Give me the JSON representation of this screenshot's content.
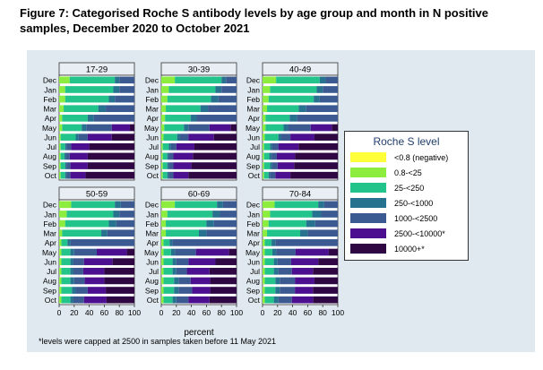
{
  "figure": {
    "title": "Figure 7: Categorised Roche S antibody levels by age group and month in N positive samples, December 2020 to October 2021",
    "footnote": "*levels were capped at 2500 in samples taken before 11 May 2021"
  },
  "chart_data": {
    "type": "bar",
    "orientation": "horizontal",
    "stacked": true,
    "xlabel": "percent",
    "xlim": [
      0,
      100
    ],
    "xticks": [
      "0",
      "20",
      "40",
      "60",
      "80",
      "100"
    ],
    "months": [
      "Dec",
      "Jan",
      "Feb",
      "Mar",
      "Apr",
      "May",
      "Jun",
      "Jul",
      "Aug",
      "Sep",
      "Oct"
    ],
    "legend": {
      "title": "Roche S level",
      "placement": "right",
      "categories": [
        "<0.8 (negative)",
        "0.8-<25",
        "25-<250",
        "250-<1000",
        "1000-<2500",
        "2500-<10000*",
        "10000+*"
      ],
      "colors": [
        "#ffff3a",
        "#8ced3e",
        "#23c48b",
        "#27728f",
        "#3c5a92",
        "#4b0f8f",
        "#2e0743"
      ]
    },
    "panels": [
      {
        "label": "17-29",
        "rows": [
          [
            0,
            14,
            60,
            6,
            20,
            0,
            0
          ],
          [
            0,
            8,
            64,
            8,
            20,
            0,
            0
          ],
          [
            0,
            8,
            58,
            8,
            26,
            0,
            0
          ],
          [
            0,
            6,
            46,
            10,
            38,
            0,
            0
          ],
          [
            0,
            4,
            34,
            8,
            54,
            0,
            0
          ],
          [
            0,
            4,
            26,
            6,
            34,
            24,
            6
          ],
          [
            0,
            2,
            20,
            4,
            12,
            32,
            30
          ],
          [
            0,
            2,
            6,
            2,
            6,
            24,
            60
          ],
          [
            0,
            2,
            5,
            2,
            5,
            24,
            62
          ],
          [
            0,
            2,
            6,
            2,
            5,
            23,
            62
          ],
          [
            0,
            2,
            6,
            2,
            5,
            20,
            65
          ]
        ]
      },
      {
        "label": "30-39",
        "rows": [
          [
            0,
            18,
            62,
            6,
            14,
            0,
            0
          ],
          [
            0,
            10,
            62,
            8,
            20,
            0,
            0
          ],
          [
            0,
            8,
            58,
            10,
            24,
            0,
            0
          ],
          [
            0,
            6,
            46,
            10,
            38,
            0,
            0
          ],
          [
            0,
            5,
            34,
            8,
            53,
            0,
            0
          ],
          [
            0,
            4,
            26,
            6,
            28,
            28,
            8
          ],
          [
            0,
            3,
            18,
            4,
            11,
            34,
            30
          ],
          [
            0,
            2,
            8,
            3,
            7,
            24,
            56
          ],
          [
            0,
            2,
            6,
            2,
            6,
            26,
            58
          ],
          [
            0,
            2,
            6,
            2,
            6,
            24,
            60
          ],
          [
            0,
            2,
            6,
            2,
            6,
            20,
            64
          ]
        ]
      },
      {
        "label": "40-49",
        "rows": [
          [
            0,
            18,
            58,
            8,
            16,
            0,
            0
          ],
          [
            0,
            10,
            62,
            8,
            20,
            0,
            0
          ],
          [
            0,
            8,
            60,
            8,
            24,
            0,
            0
          ],
          [
            0,
            6,
            42,
            10,
            42,
            0,
            0
          ],
          [
            0,
            4,
            32,
            10,
            54,
            0,
            0
          ],
          [
            0,
            4,
            24,
            6,
            30,
            28,
            8
          ],
          [
            0,
            3,
            18,
            4,
            12,
            32,
            31
          ],
          [
            0,
            2,
            8,
            3,
            8,
            27,
            52
          ],
          [
            0,
            2,
            7,
            3,
            7,
            24,
            57
          ],
          [
            0,
            2,
            8,
            3,
            7,
            22,
            58
          ],
          [
            0,
            2,
            6,
            2,
            7,
            20,
            63
          ]
        ]
      },
      {
        "label": "50-59",
        "rows": [
          [
            0,
            16,
            58,
            8,
            18,
            0,
            0
          ],
          [
            0,
            10,
            62,
            8,
            20,
            0,
            0
          ],
          [
            0,
            8,
            58,
            10,
            24,
            0,
            0
          ],
          [
            0,
            4,
            52,
            8,
            36,
            0,
            0
          ],
          [
            0,
            3,
            8,
            4,
            85,
            0,
            0
          ],
          [
            0,
            3,
            12,
            5,
            30,
            40,
            10
          ],
          [
            0,
            3,
            12,
            4,
            14,
            38,
            29
          ],
          [
            0,
            3,
            12,
            4,
            13,
            28,
            40
          ],
          [
            0,
            3,
            12,
            5,
            14,
            26,
            40
          ],
          [
            0,
            3,
            14,
            5,
            16,
            24,
            38
          ],
          [
            0,
            3,
            12,
            4,
            14,
            30,
            37
          ]
        ]
      },
      {
        "label": "60-69",
        "rows": [
          [
            0,
            18,
            56,
            8,
            18,
            0,
            0
          ],
          [
            0,
            8,
            60,
            10,
            22,
            0,
            0
          ],
          [
            0,
            6,
            54,
            10,
            30,
            0,
            0
          ],
          [
            0,
            6,
            44,
            10,
            40,
            0,
            0
          ],
          [
            0,
            3,
            8,
            4,
            85,
            0,
            0
          ],
          [
            0,
            3,
            10,
            5,
            28,
            44,
            10
          ],
          [
            0,
            3,
            12,
            5,
            16,
            36,
            28
          ],
          [
            0,
            3,
            12,
            5,
            14,
            30,
            36
          ],
          [
            0,
            3,
            14,
            6,
            16,
            26,
            35
          ],
          [
            0,
            3,
            14,
            6,
            18,
            24,
            35
          ],
          [
            0,
            3,
            12,
            5,
            16,
            28,
            36
          ]
        ]
      },
      {
        "label": "70-84",
        "rows": [
          [
            0,
            16,
            58,
            8,
            18,
            0,
            0
          ],
          [
            0,
            10,
            56,
            12,
            22,
            0,
            0
          ],
          [
            0,
            8,
            50,
            12,
            30,
            0,
            0
          ],
          [
            0,
            6,
            44,
            10,
            40,
            0,
            0
          ],
          [
            0,
            3,
            9,
            5,
            83,
            0,
            0
          ],
          [
            0,
            3,
            10,
            5,
            26,
            44,
            12
          ],
          [
            0,
            3,
            12,
            5,
            18,
            36,
            26
          ],
          [
            0,
            3,
            12,
            6,
            18,
            28,
            33
          ],
          [
            0,
            3,
            14,
            6,
            20,
            26,
            31
          ],
          [
            0,
            3,
            14,
            6,
            20,
            24,
            33
          ],
          [
            0,
            3,
            12,
            6,
            18,
            28,
            33
          ]
        ]
      }
    ]
  }
}
